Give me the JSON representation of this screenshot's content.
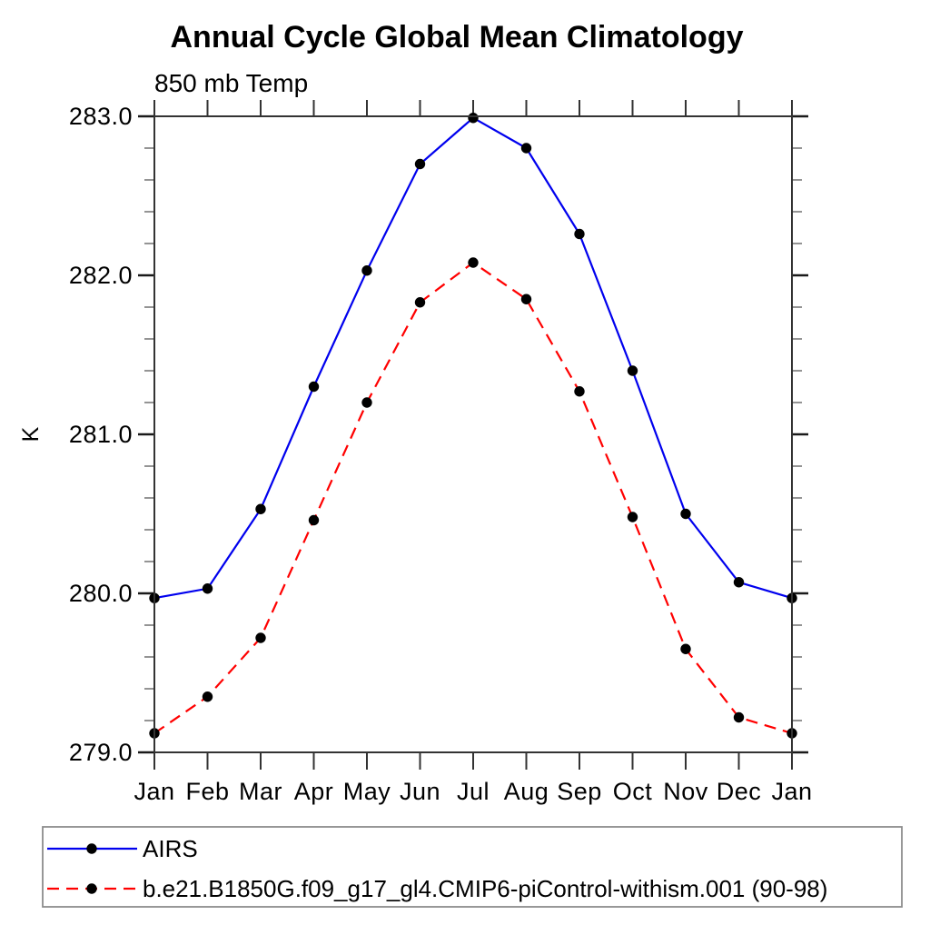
{
  "chart_data": {
    "type": "line",
    "title": "Annual Cycle Global Mean Climatology",
    "subtitle": "850 mb Temp",
    "ylabel": "K",
    "xlabel": "",
    "categories": [
      "Jan",
      "Feb",
      "Mar",
      "Apr",
      "May",
      "Jun",
      "Jul",
      "Aug",
      "Sep",
      "Oct",
      "Nov",
      "Dec",
      "Jan"
    ],
    "ylim": [
      279.0,
      283.0
    ],
    "y_major_ticks": [
      279.0,
      280.0,
      281.0,
      282.0,
      283.0
    ],
    "y_major_tick_labels": [
      "279.0",
      "280.0",
      "281.0",
      "282.0",
      "283.0"
    ],
    "y_minor_tick_step": 0.2,
    "grid": false,
    "legend_position": "bottom-left",
    "series": [
      {
        "name": "AIRS",
        "color": "#0000ee",
        "line_style": "solid",
        "marker": "filled-circle",
        "marker_color": "#000000",
        "values": [
          279.97,
          280.03,
          280.53,
          281.3,
          282.03,
          282.7,
          282.99,
          282.8,
          282.26,
          281.4,
          280.5,
          280.07,
          279.97
        ]
      },
      {
        "name": "b.e21.B1850G.f09_g17_gl4.CMIP6-piControl-withism.001 (90-98)",
        "color": "#ff0000",
        "line_style": "dashed",
        "marker": "filled-circle",
        "marker_color": "#000000",
        "values": [
          279.12,
          279.35,
          279.72,
          280.46,
          281.2,
          281.83,
          282.08,
          281.85,
          281.27,
          280.48,
          279.65,
          279.22,
          279.12
        ]
      }
    ],
    "colors": {
      "axis": "#333333",
      "major_tick": "#1a1a1a",
      "minor_tick": "#666666",
      "legend_border": "#8c8c8c",
      "text": "#000000"
    }
  }
}
